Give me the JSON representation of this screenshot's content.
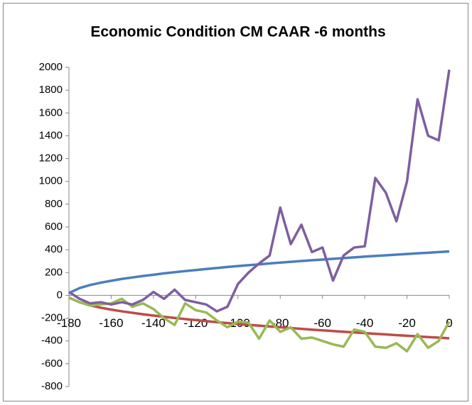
{
  "chart_data": {
    "type": "line",
    "title": "Economic Condition CM CAAR -6 months",
    "x": [
      -180,
      -175,
      -170,
      -165,
      -160,
      -155,
      -150,
      -145,
      -140,
      -135,
      -130,
      -125,
      -120,
      -115,
      -110,
      -105,
      -100,
      -95,
      -90,
      -85,
      -80,
      -75,
      -70,
      -65,
      -60,
      -55,
      -50,
      -45,
      -40,
      -35,
      -30,
      -25,
      -20,
      -15,
      -10,
      -5,
      0
    ],
    "series": [
      {
        "color": "#4a7ebb",
        "values": [
          20,
          64,
          91,
          111,
          128,
          144,
          157,
          170,
          181,
          193,
          203,
          213,
          222,
          231,
          240,
          249,
          257,
          265,
          272,
          280,
          287,
          294,
          301,
          308,
          314,
          321,
          327,
          333,
          340,
          346,
          351,
          357,
          363,
          369,
          374,
          380,
          385
        ]
      },
      {
        "color": "#be4b48",
        "values": [
          -20,
          -60,
          -88,
          -108,
          -125,
          -140,
          -153,
          -166,
          -177,
          -188,
          -198,
          -208,
          -217,
          -226,
          -235,
          -243,
          -251,
          -259,
          -266,
          -273,
          -280,
          -287,
          -294,
          -301,
          -307,
          -313,
          -319,
          -325,
          -331,
          -337,
          -343,
          -349,
          -354,
          -360,
          -366,
          -371,
          -377
        ]
      },
      {
        "color": "#98b954",
        "values": [
          -20,
          -60,
          -90,
          -80,
          -70,
          -30,
          -100,
          -70,
          -120,
          -200,
          -260,
          -70,
          -130,
          -150,
          -220,
          -280,
          -230,
          -240,
          -380,
          -220,
          -320,
          -280,
          -380,
          -370,
          -400,
          -430,
          -450,
          -300,
          -320,
          -450,
          -460,
          -420,
          -490,
          -340,
          -460,
          -400,
          -230
        ]
      },
      {
        "color": "#7d5fa0",
        "values": [
          30,
          -30,
          -70,
          -60,
          -80,
          -60,
          -80,
          -40,
          30,
          -30,
          50,
          -40,
          -60,
          -80,
          -140,
          -100,
          100,
          200,
          280,
          350,
          770,
          450,
          620,
          380,
          420,
          130,
          350,
          420,
          430,
          1030,
          900,
          650,
          1000,
          1720,
          1400,
          1360,
          1980
        ]
      }
    ],
    "xlim": [
      -180,
      0
    ],
    "xticks": [
      -180,
      -160,
      -140,
      -120,
      -100,
      -80,
      -60,
      -40,
      -20,
      0
    ],
    "ylim": [
      -800,
      2000
    ],
    "yticks": [
      -800,
      -600,
      -400,
      -200,
      0,
      200,
      400,
      600,
      800,
      1000,
      1200,
      1400,
      1600,
      1800,
      2000
    ],
    "grid": false
  }
}
